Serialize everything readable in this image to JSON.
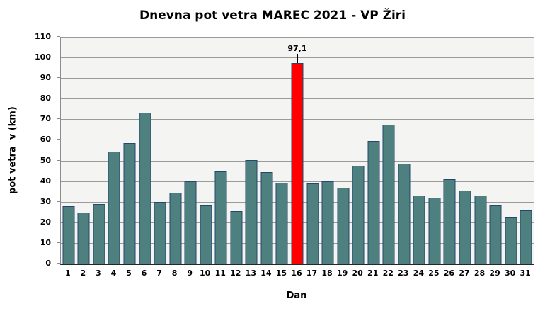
{
  "chart_data": {
    "type": "bar",
    "title": "Dnevna pot vetra MAREC 2021 - VP Žiri",
    "xlabel": "Dan",
    "ylabel": "pot vetra  v (km)",
    "ylim": [
      0,
      110
    ],
    "ytick_step": 10,
    "grid": true,
    "legend": "none",
    "categories": [
      "1",
      "2",
      "3",
      "4",
      "5",
      "6",
      "7",
      "8",
      "9",
      "10",
      "11",
      "12",
      "13",
      "14",
      "15",
      "16",
      "17",
      "18",
      "19",
      "20",
      "21",
      "22",
      "23",
      "24",
      "25",
      "26",
      "27",
      "28",
      "29",
      "30",
      "31"
    ],
    "values": [
      27.5,
      24.5,
      28.5,
      54,
      58,
      73,
      29.5,
      34,
      39.5,
      28,
      44.5,
      25,
      50,
      44,
      39,
      97.1,
      38.5,
      39.5,
      36.5,
      47,
      59,
      67,
      48,
      32.5,
      31.5,
      40.5,
      35,
      32.5,
      28,
      22,
      25.5
    ],
    "highlight": {
      "index": 15,
      "label": "97,1",
      "color": "#ff0000"
    },
    "colors": {
      "bar_fill": "#4f8080",
      "bar_border": "#24476b",
      "plot_bg": "#f4f4f2",
      "gridline": "#9b9b9b",
      "axis": "#262626",
      "text": "#000000"
    }
  }
}
